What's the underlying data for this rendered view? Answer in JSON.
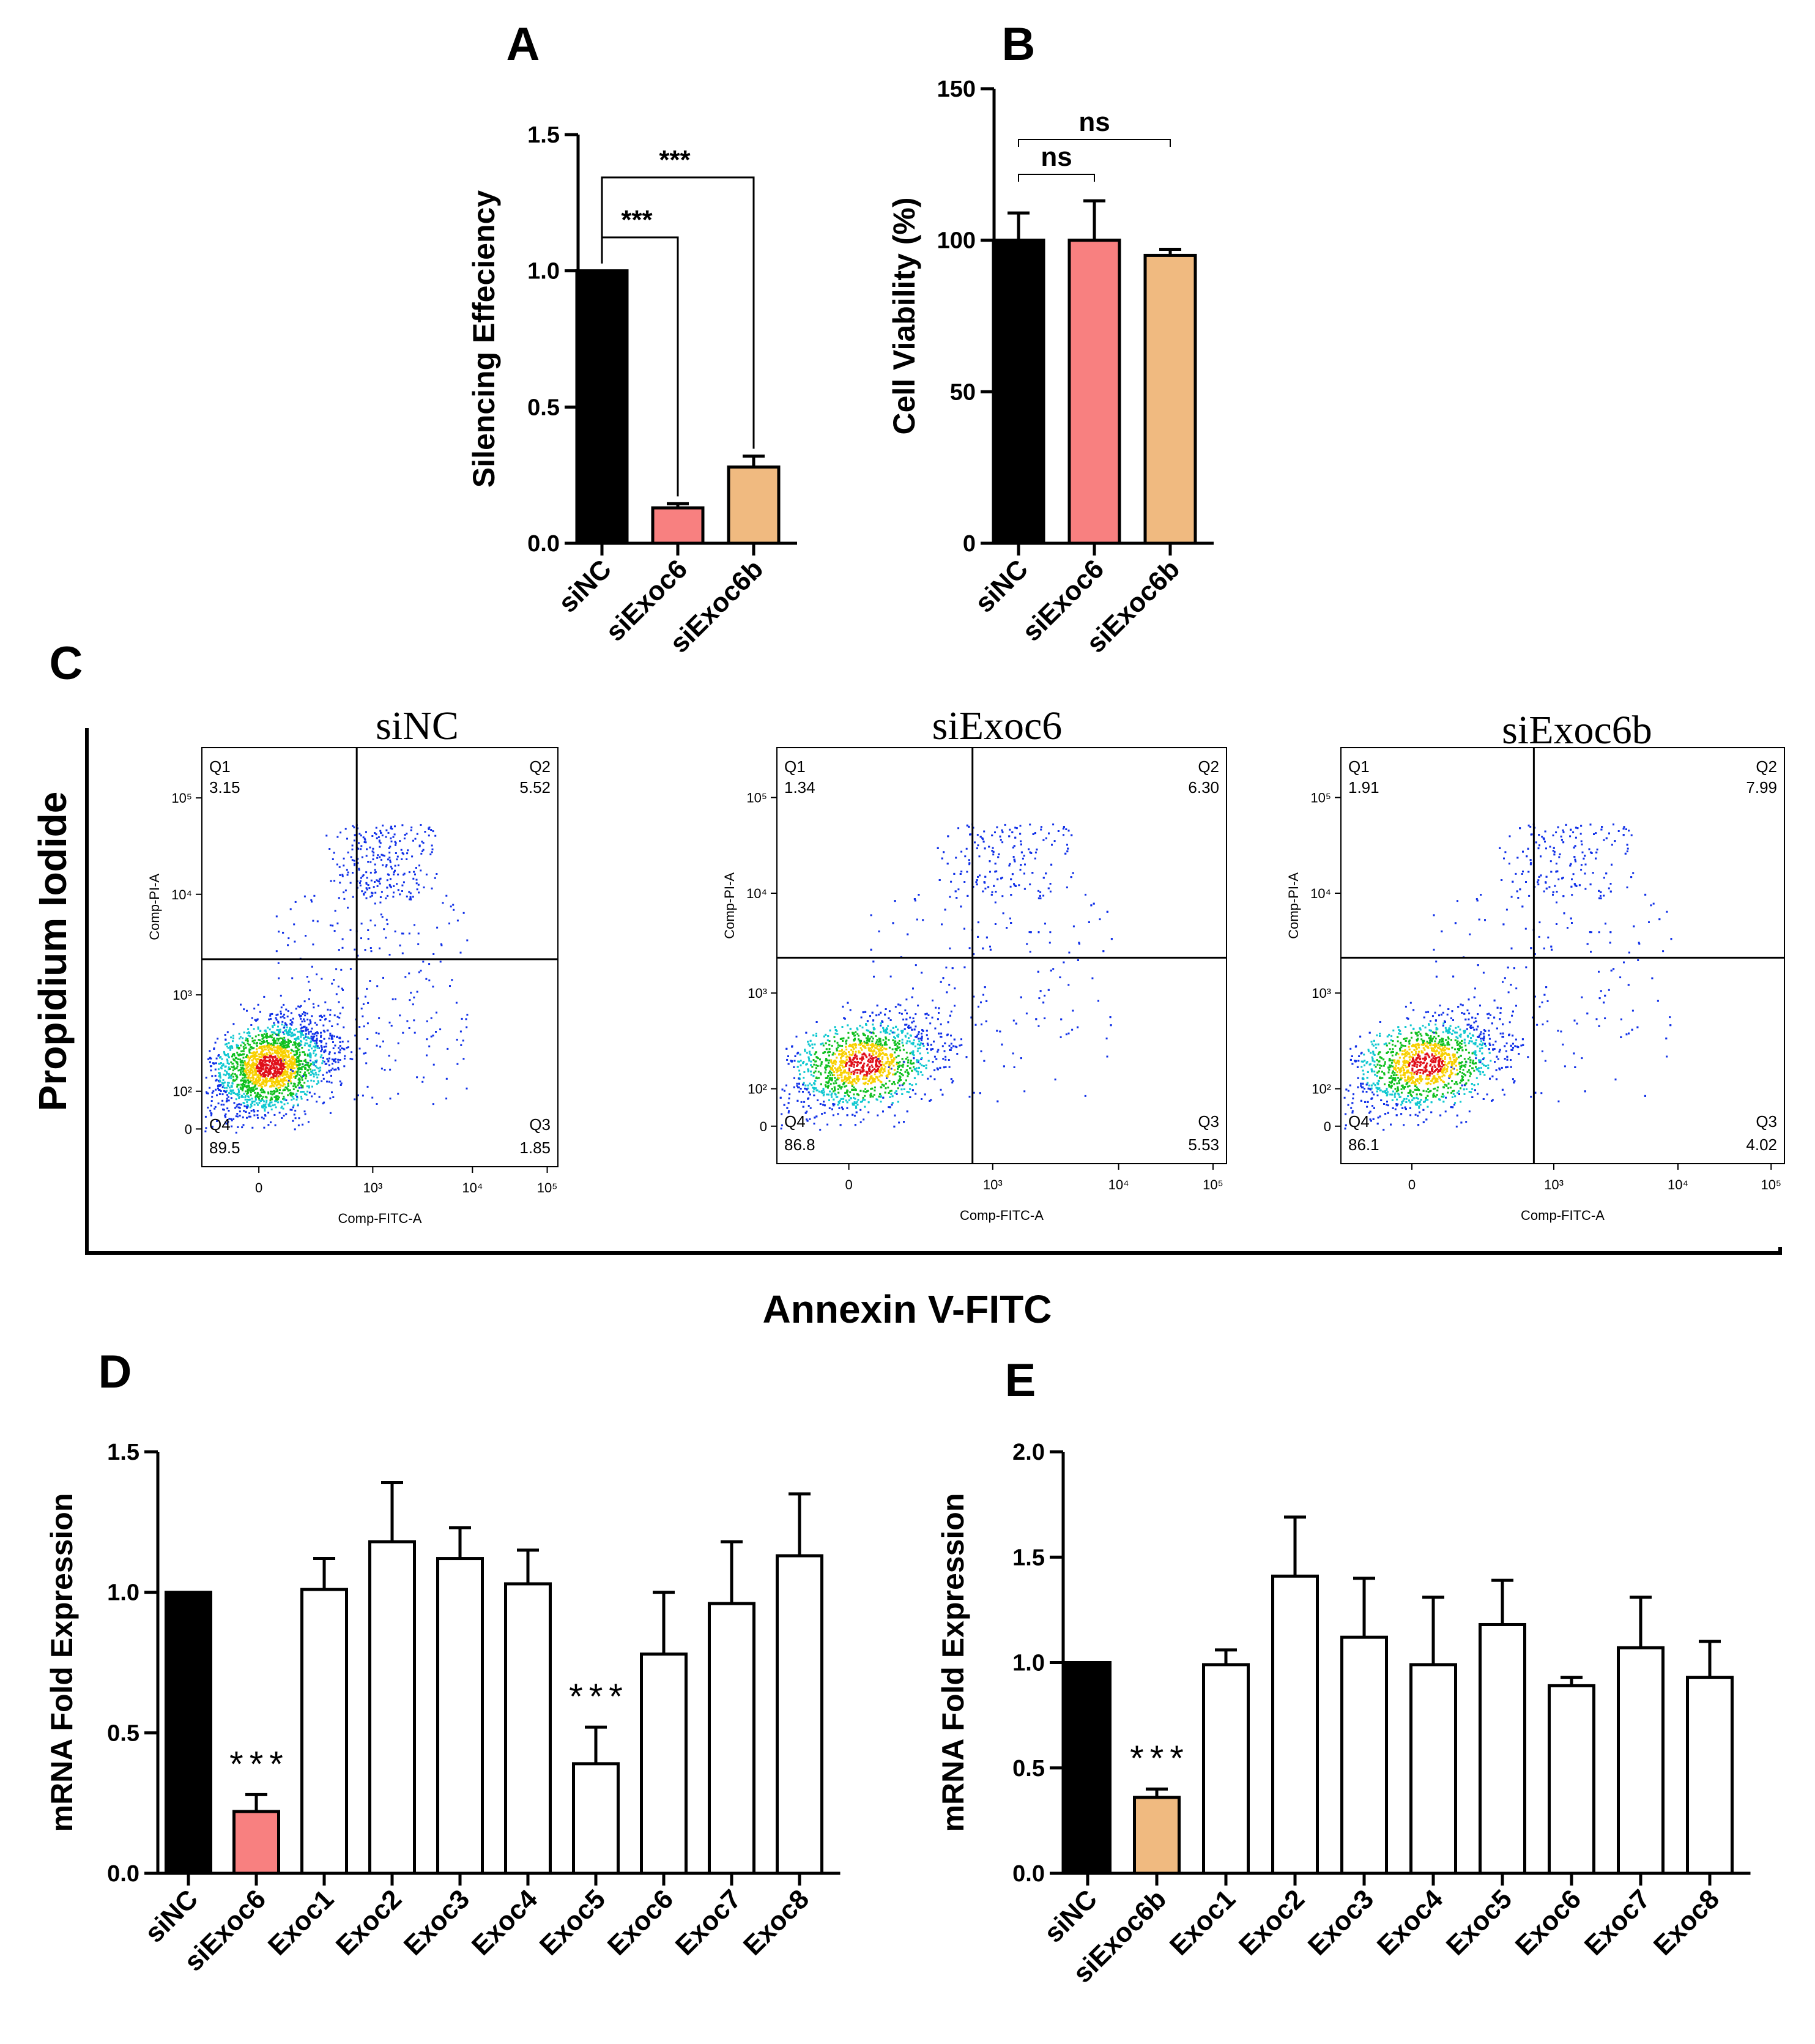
{
  "panel_labels": {
    "A": "A",
    "B": "B",
    "C": "C",
    "D": "D",
    "E": "E"
  },
  "colors": {
    "black": "#000000",
    "pink": "#f88080",
    "tan": "#f0ba80",
    "white": "#ffffff"
  },
  "chart_data": [
    {
      "id": "A",
      "type": "bar",
      "ylabel": "Silencing Effeciency",
      "ylim": [
        0,
        1.5
      ],
      "yticks": [
        "0.0",
        "0.5",
        "1.0",
        "1.5"
      ],
      "categories": [
        "siNC",
        "siExoc6",
        "siExoc6b"
      ],
      "values": [
        1.0,
        0.13,
        0.28
      ],
      "errors": [
        0.0,
        0.015,
        0.04
      ],
      "fill_colors": [
        "#000000",
        "#f88080",
        "#f0ba80"
      ],
      "significance": [
        {
          "from": 0,
          "to": 1,
          "label": "***"
        },
        {
          "from": 0,
          "to": 2,
          "label": "***"
        }
      ]
    },
    {
      "id": "B",
      "type": "bar",
      "ylabel": "Cell Viability (%)",
      "ylim": [
        0,
        150
      ],
      "yticks": [
        "0",
        "50",
        "100",
        "150"
      ],
      "categories": [
        "siNC",
        "siExoc6",
        "siExoc6b"
      ],
      "values": [
        100,
        100,
        95
      ],
      "errors": [
        9,
        13,
        2
      ],
      "fill_colors": [
        "#000000",
        "#f88080",
        "#f0ba80"
      ],
      "significance": [
        {
          "from": 0,
          "to": 1,
          "label": "ns"
        },
        {
          "from": 0,
          "to": 2,
          "label": "ns"
        }
      ]
    },
    {
      "id": "D",
      "type": "bar",
      "ylabel": "mRNA Fold Expression",
      "ylim": [
        0,
        1.5
      ],
      "yticks": [
        "0.0",
        "0.5",
        "1.0",
        "1.5"
      ],
      "categories": [
        "siNC",
        "siExoc6",
        "Exoc1",
        "Exoc2",
        "Exoc3",
        "Exoc4",
        "Exoc5",
        "Exoc6",
        "Exoc7",
        "Exoc8"
      ],
      "values": [
        1.0,
        0.22,
        1.01,
        1.18,
        1.12,
        1.03,
        0.39,
        0.78,
        0.96,
        1.13
      ],
      "errors": [
        0.0,
        0.06,
        0.11,
        0.21,
        0.11,
        0.12,
        0.13,
        0.22,
        0.22,
        0.22
      ],
      "fill_colors": [
        "#000000",
        "#f88080",
        "#ffffff",
        "#ffffff",
        "#ffffff",
        "#ffffff",
        "#ffffff",
        "#ffffff",
        "#ffffff",
        "#ffffff"
      ],
      "stars": [
        {
          "index": 1,
          "label": "***"
        },
        {
          "index": 6,
          "label": "***"
        }
      ]
    },
    {
      "id": "E",
      "type": "bar",
      "ylabel": "mRNA Fold Expression",
      "ylim": [
        0,
        2.0
      ],
      "yticks": [
        "0.0",
        "0.5",
        "1.0",
        "1.5",
        "2.0"
      ],
      "categories": [
        "siNC",
        "siExoc6b",
        "Exoc1",
        "Exoc2",
        "Exoc3",
        "Exoc4",
        "Exoc5",
        "Exoc6",
        "Exoc7",
        "Exoc8"
      ],
      "values": [
        1.0,
        0.36,
        0.99,
        1.41,
        1.12,
        0.99,
        1.18,
        0.89,
        1.07,
        0.93
      ],
      "errors": [
        0.0,
        0.04,
        0.07,
        0.28,
        0.28,
        0.32,
        0.21,
        0.04,
        0.24,
        0.17
      ],
      "fill_colors": [
        "#000000",
        "#f0ba80",
        "#ffffff",
        "#ffffff",
        "#ffffff",
        "#ffffff",
        "#ffffff",
        "#ffffff",
        "#ffffff",
        "#ffffff"
      ],
      "stars": [
        {
          "index": 1,
          "label": "***"
        }
      ]
    }
  ],
  "flow": {
    "ylabel": "Propidium Iodide",
    "xlabel": "Annexin V-FITC",
    "plot_xlabel": "Comp-FITC-A",
    "plot_ylabel": "Comp-PI-A",
    "x_ticks": [
      "0",
      "10³",
      "10⁴",
      "10⁵"
    ],
    "y_ticks": [
      "0",
      "10²",
      "10³",
      "10⁴",
      "10⁵"
    ],
    "plots": [
      {
        "title": "siNC",
        "Q1": "3.15",
        "Q2": "5.52",
        "Q3": "1.85",
        "Q4": "89.5"
      },
      {
        "title": "siExoc6",
        "Q1": "1.34",
        "Q2": "6.30",
        "Q3": "5.53",
        "Q4": "86.8"
      },
      {
        "title": "siExoc6b",
        "Q1": "1.91",
        "Q2": "7.99",
        "Q3": "4.02",
        "Q4": "86.1"
      }
    ],
    "quadrant_names": [
      "Q1",
      "Q2",
      "Q3",
      "Q4"
    ]
  }
}
